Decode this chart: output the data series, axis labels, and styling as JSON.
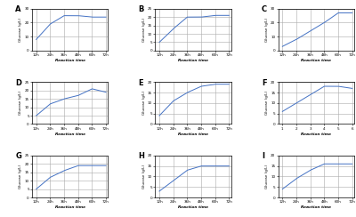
{
  "panels": [
    {
      "label": "A",
      "x": [
        12,
        24,
        36,
        48,
        60,
        72
      ],
      "y": [
        8,
        19,
        25,
        25,
        24,
        24
      ],
      "ylim": [
        0,
        30
      ],
      "yticks": [
        0,
        10,
        20,
        30
      ],
      "xticks": [
        12,
        24,
        36,
        48,
        60,
        72
      ],
      "xlabel_type": "h"
    },
    {
      "label": "B",
      "x": [
        12,
        24,
        36,
        48,
        60,
        72
      ],
      "y": [
        5,
        13,
        20,
        20,
        21,
        21
      ],
      "ylim": [
        0,
        25
      ],
      "yticks": [
        0,
        5,
        10,
        15,
        20,
        25
      ],
      "xticks": [
        12,
        24,
        36,
        48,
        60,
        72
      ],
      "xlabel_type": "h"
    },
    {
      "label": "C",
      "x": [
        12,
        24,
        36,
        48,
        60,
        72
      ],
      "y": [
        3,
        8,
        14,
        20,
        27,
        27
      ],
      "ylim": [
        0,
        30
      ],
      "yticks": [
        0,
        10,
        20,
        30
      ],
      "xticks": [
        12,
        24,
        36,
        48,
        60,
        72
      ],
      "xlabel_type": "h"
    },
    {
      "label": "D",
      "x": [
        12,
        24,
        36,
        48,
        60,
        72
      ],
      "y": [
        5,
        12,
        15,
        17,
        21,
        19
      ],
      "ylim": [
        0,
        25
      ],
      "yticks": [
        0,
        5,
        10,
        15,
        20,
        25
      ],
      "xticks": [
        12,
        24,
        36,
        48,
        60,
        72
      ],
      "xlabel_type": "h"
    },
    {
      "label": "E",
      "x": [
        12,
        24,
        36,
        48,
        60,
        72
      ],
      "y": [
        4,
        11,
        15,
        18,
        19,
        19
      ],
      "ylim": [
        0,
        20
      ],
      "yticks": [
        0,
        5,
        10,
        15,
        20
      ],
      "xticks": [
        12,
        24,
        36,
        48,
        60,
        72
      ],
      "xlabel_type": "h"
    },
    {
      "label": "F",
      "x": [
        1,
        2,
        3,
        4,
        5,
        6
      ],
      "y": [
        6,
        10,
        14,
        18,
        18,
        17
      ],
      "ylim": [
        0,
        20
      ],
      "yticks": [
        0,
        5,
        10,
        15,
        20
      ],
      "xticks": [
        1,
        2,
        3,
        4,
        5,
        6
      ],
      "xlabel_type": "n"
    },
    {
      "label": "G",
      "x": [
        12,
        24,
        36,
        48,
        60,
        72
      ],
      "y": [
        5,
        12,
        16,
        19,
        19,
        19
      ],
      "ylim": [
        0,
        25
      ],
      "yticks": [
        0,
        5,
        10,
        15,
        20,
        25
      ],
      "xticks": [
        12,
        24,
        36,
        48,
        60,
        72
      ],
      "xlabel_type": "h"
    },
    {
      "label": "H",
      "x": [
        12,
        24,
        36,
        48,
        60,
        72
      ],
      "y": [
        3,
        8,
        13,
        15,
        15,
        15
      ],
      "ylim": [
        0,
        20
      ],
      "yticks": [
        0,
        5,
        10,
        15,
        20
      ],
      "xticks": [
        12,
        24,
        36,
        48,
        60,
        72
      ],
      "xlabel_type": "h"
    },
    {
      "label": "I",
      "x": [
        12,
        24,
        36,
        48,
        60,
        72
      ],
      "y": [
        4,
        9,
        13,
        16,
        16,
        16
      ],
      "ylim": [
        0,
        20
      ],
      "yticks": [
        0,
        5,
        10,
        15,
        20
      ],
      "xticks": [
        12,
        24,
        36,
        48,
        60,
        72
      ],
      "xlabel_type": "h"
    }
  ],
  "line_color": "#4472c4",
  "bg_color": "#ffffff",
  "ylabel": "Glucose (g/L)",
  "xlabel": "Reaction time"
}
